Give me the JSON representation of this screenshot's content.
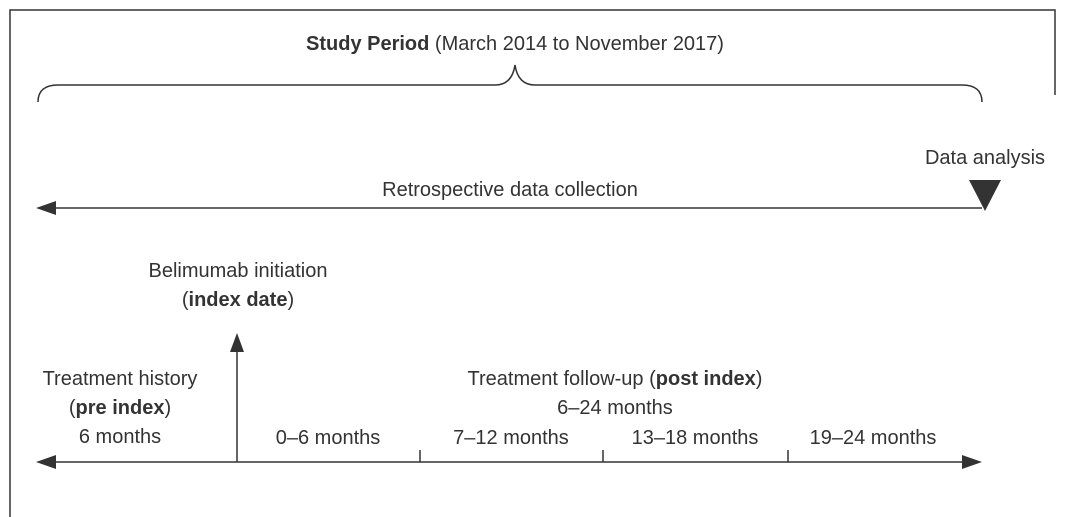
{
  "title": [
    {
      "text": "Study Period",
      "bold": true
    },
    {
      "text": " (March 2014 to November 2017)",
      "bold": false
    }
  ],
  "data_analysis": "Data analysis",
  "retrospective": "Retrospective data collection",
  "index": {
    "line1": "Belimumab initiation",
    "line2": [
      {
        "text": "(",
        "bold": false
      },
      {
        "text": "index date",
        "bold": true
      },
      {
        "text": ")",
        "bold": false
      }
    ]
  },
  "pre_index": {
    "line1": "Treatment history",
    "line2": [
      {
        "text": "(",
        "bold": false
      },
      {
        "text": "pre index",
        "bold": true
      },
      {
        "text": ")",
        "bold": false
      }
    ],
    "line3": "6 months"
  },
  "post_index": {
    "line1": [
      {
        "text": "Treatment follow-up (",
        "bold": false
      },
      {
        "text": "post index",
        "bold": true
      },
      {
        "text": ")",
        "bold": false
      }
    ],
    "line2": "6–24 months"
  },
  "segments": [
    "0–6 months",
    "7–12 months",
    "13–18 months",
    "19–24 months"
  ]
}
